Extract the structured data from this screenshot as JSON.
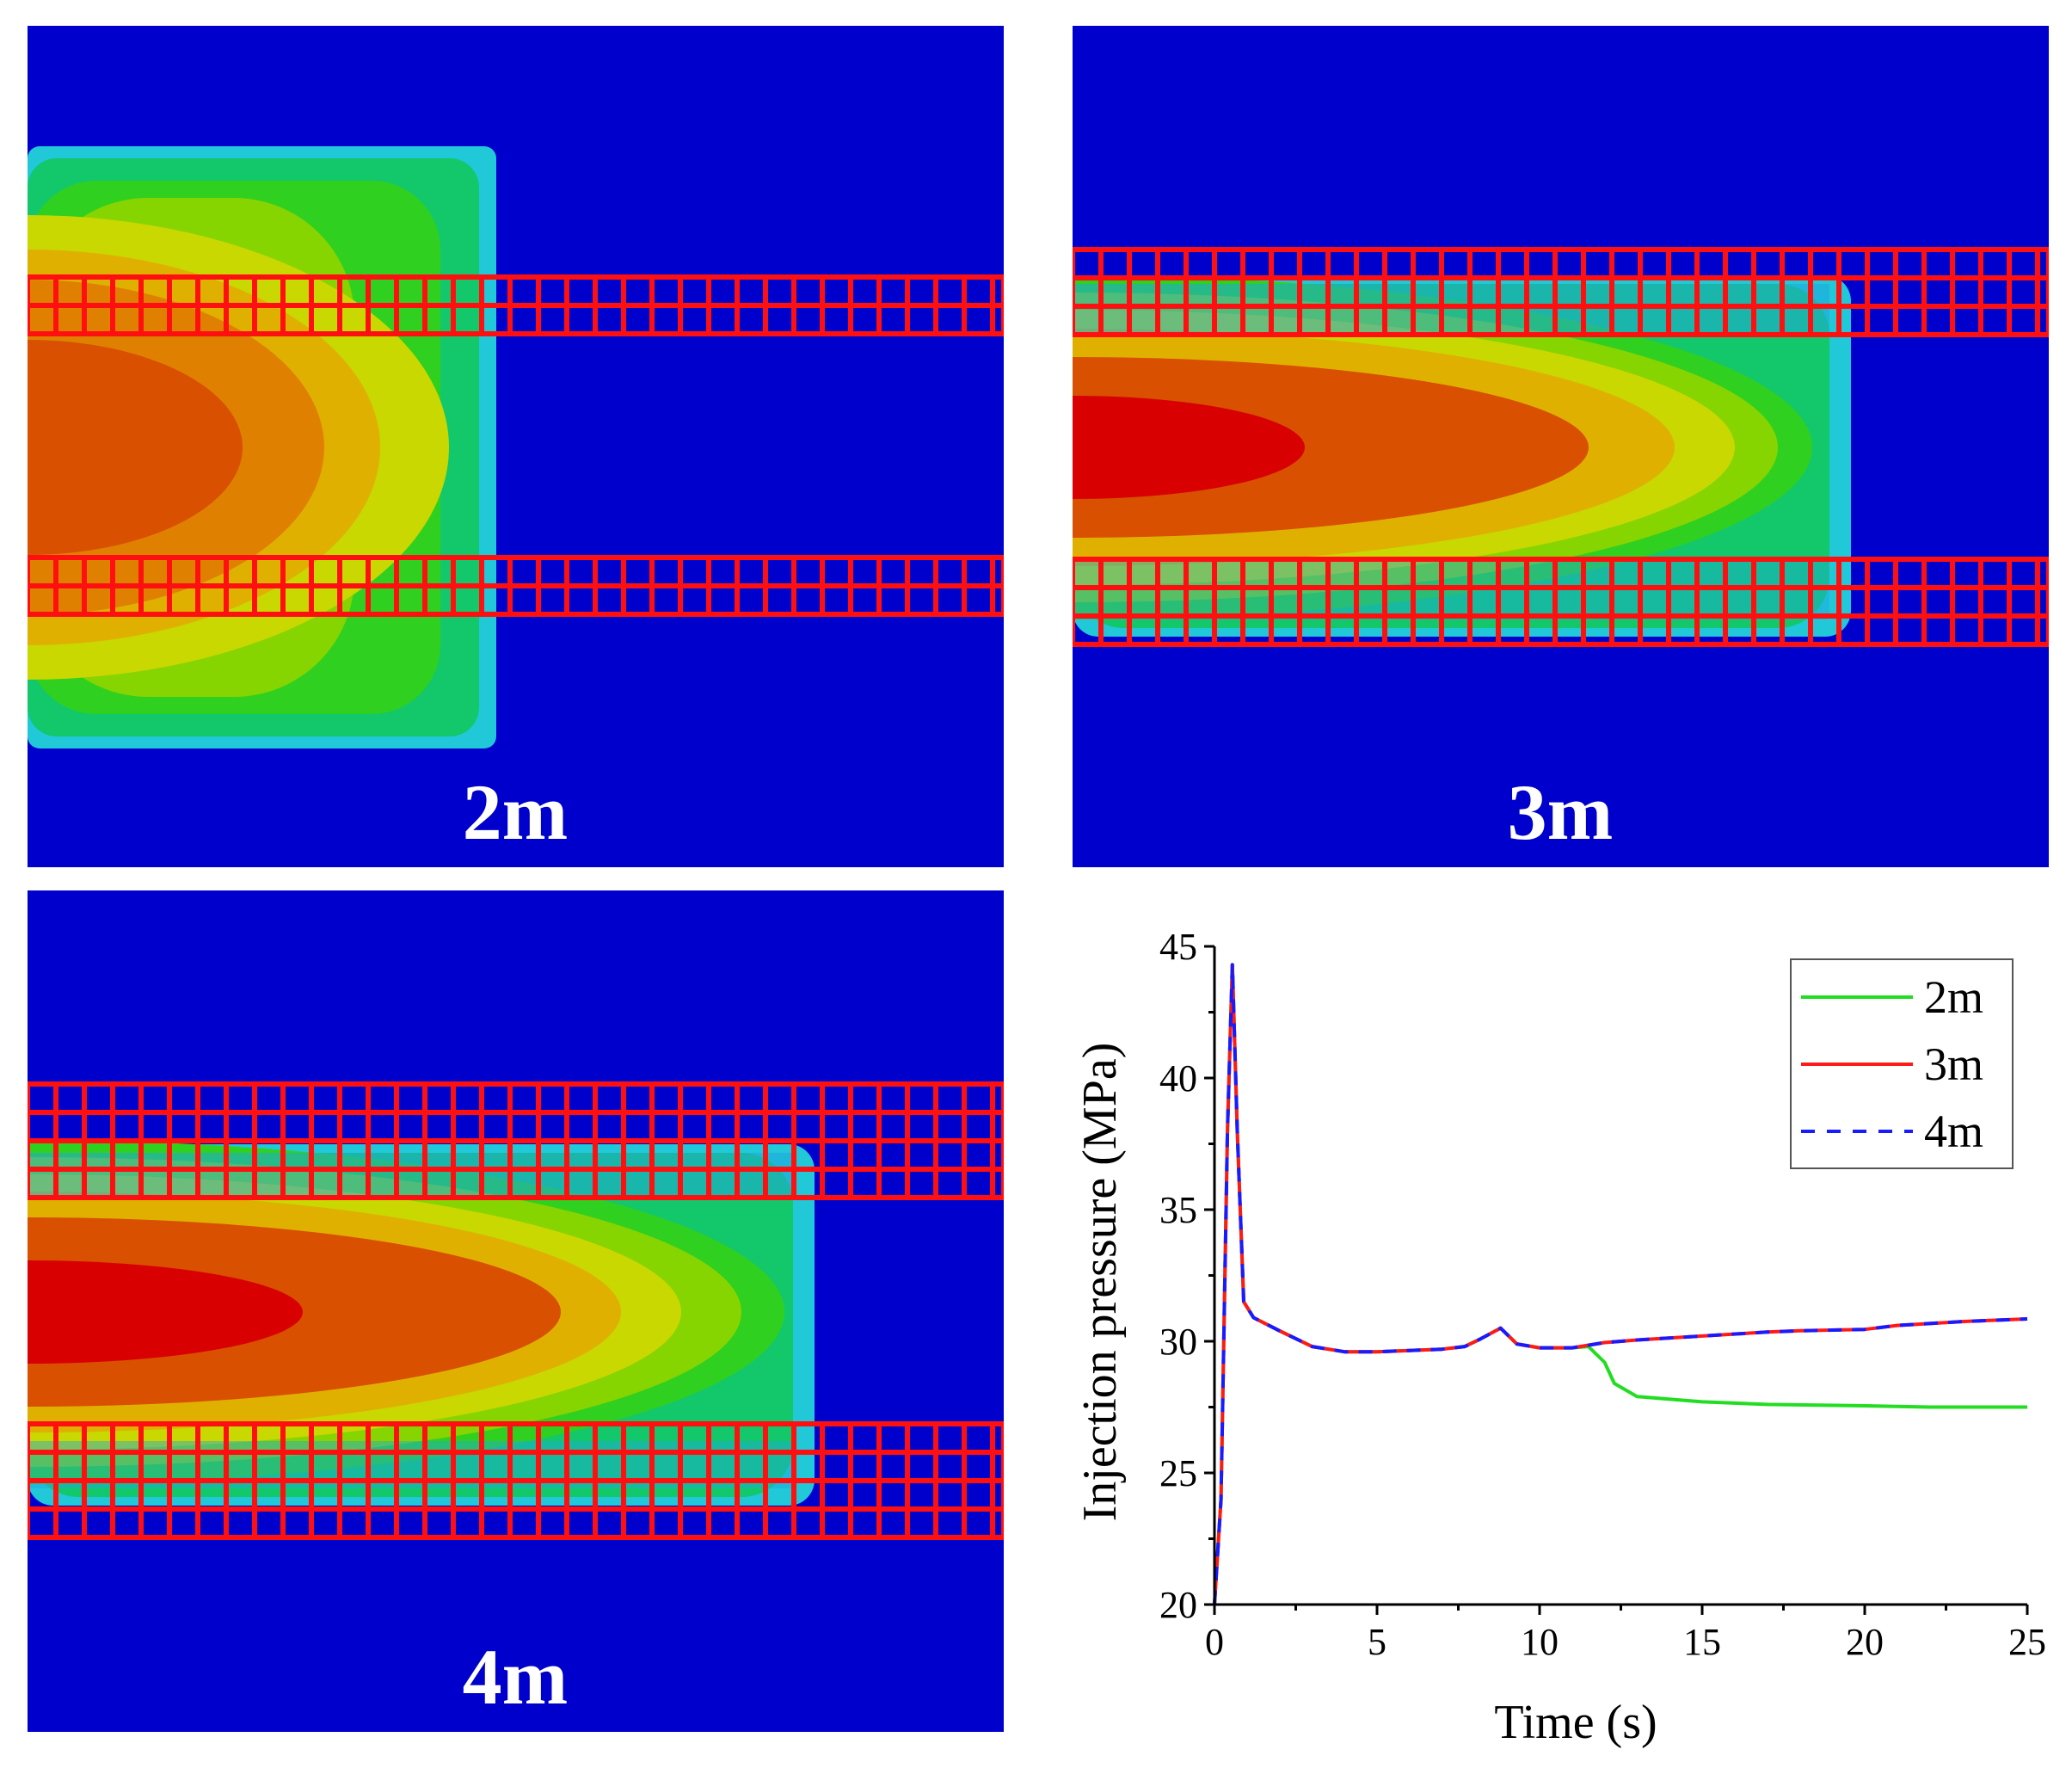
{
  "colors": {
    "background_blue": "#0000cc",
    "fracture_grid": "#ff1010",
    "contour_levels": [
      "#0000cc",
      "#2a8cf0",
      "#20c8d8",
      "#12c86a",
      "#30d020",
      "#86d400",
      "#c8d800",
      "#e0b000",
      "#e08000",
      "#d85000",
      "#d80000"
    ]
  },
  "panels": [
    {
      "label": "2m"
    },
    {
      "label": "3m"
    },
    {
      "label": "4m"
    }
  ],
  "chart_data": {
    "type": "line",
    "title": "",
    "xlabel": "Time (s)",
    "ylabel": "Injection pressure (MPa)",
    "xlim": [
      0,
      25
    ],
    "ylim": [
      20,
      45
    ],
    "xticks": [
      0,
      5,
      10,
      15,
      20,
      25
    ],
    "yticks": [
      20,
      25,
      30,
      35,
      40,
      45
    ],
    "grid": false,
    "legend_position": "top-right",
    "series": [
      {
        "name": "2m",
        "color": "#22dd22",
        "dash": "solid",
        "x": [
          0,
          0.2,
          0.4,
          0.55,
          0.7,
          0.9,
          1.2,
          2,
          3,
          4,
          5,
          6,
          7,
          7.7,
          8.2,
          8.8,
          9.3,
          10,
          11,
          11.5,
          12,
          12.3,
          13,
          15,
          17,
          20,
          22,
          25
        ],
        "y": [
          20,
          24,
          38,
          44.3,
          38,
          31.5,
          30.9,
          30.4,
          29.8,
          29.6,
          29.6,
          29.65,
          29.7,
          29.8,
          30.1,
          30.5,
          29.9,
          29.75,
          29.75,
          29.8,
          29.2,
          28.4,
          27.9,
          27.7,
          27.6,
          27.55,
          27.5,
          27.5
        ]
      },
      {
        "name": "3m",
        "color": "#ff1a1a",
        "dash": "solid",
        "x": [
          0,
          0.2,
          0.4,
          0.55,
          0.7,
          0.9,
          1.2,
          2,
          3,
          4,
          5,
          6,
          7,
          7.7,
          8.2,
          8.8,
          9.3,
          10,
          11,
          12,
          13,
          15,
          17,
          18,
          20,
          21,
          23,
          25
        ],
        "y": [
          20,
          24,
          38,
          44.3,
          38,
          31.5,
          30.9,
          30.4,
          29.8,
          29.6,
          29.6,
          29.65,
          29.7,
          29.8,
          30.1,
          30.5,
          29.9,
          29.75,
          29.75,
          29.95,
          30.05,
          30.2,
          30.35,
          30.4,
          30.45,
          30.6,
          30.75,
          30.85
        ]
      },
      {
        "name": "4m",
        "color": "#1a1aff",
        "dash": "dashed",
        "x": [
          0,
          0.2,
          0.4,
          0.55,
          0.7,
          0.9,
          1.2,
          2,
          3,
          4,
          5,
          6,
          7,
          7.7,
          8.2,
          8.8,
          9.3,
          10,
          11,
          12,
          13,
          15,
          17,
          18,
          20,
          21,
          23,
          25
        ],
        "y": [
          20,
          24,
          38,
          44.3,
          38,
          31.5,
          30.9,
          30.4,
          29.8,
          29.6,
          29.6,
          29.65,
          29.7,
          29.8,
          30.1,
          30.5,
          29.9,
          29.75,
          29.75,
          29.95,
          30.05,
          30.2,
          30.35,
          30.4,
          30.45,
          30.6,
          30.75,
          30.85
        ]
      }
    ]
  }
}
